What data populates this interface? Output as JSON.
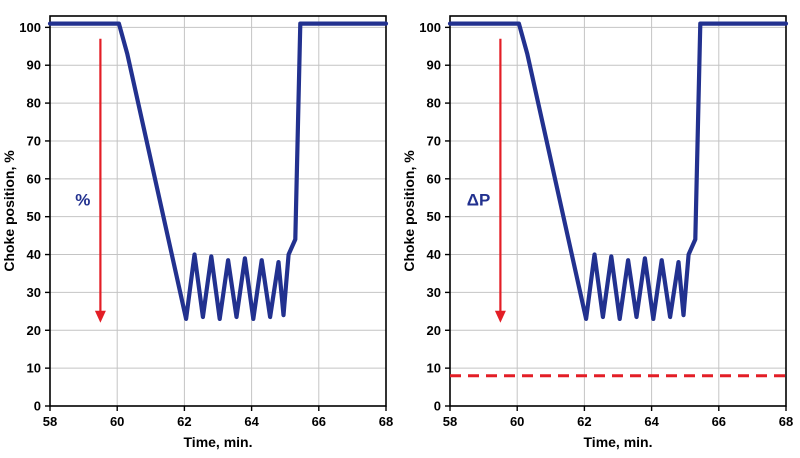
{
  "page": {
    "background": "#ffffff"
  },
  "chart_data": [
    {
      "type": "line",
      "title": "",
      "xlabel": "Time, min.",
      "ylabel": "Choke position, %",
      "xlim": [
        58,
        68
      ],
      "ylim": [
        0,
        103
      ],
      "xticks": [
        58,
        60,
        62,
        64,
        66,
        68
      ],
      "yticks": [
        0,
        10,
        20,
        30,
        40,
        50,
        60,
        70,
        80,
        90,
        100
      ],
      "grid": true,
      "legend": "none",
      "annotation": {
        "label": "%",
        "x": 59.2,
        "y": 53,
        "color": "#22318f"
      },
      "arrow": {
        "x": 59.5,
        "y_from": 97,
        "y_to": 22,
        "color": "#e31e26",
        "direction": "down"
      },
      "threshold": null,
      "series": [
        {
          "name": "Choke position",
          "color": "#22318f",
          "points": [
            [
              58,
              101
            ],
            [
              60.05,
              101
            ],
            [
              60.3,
              93
            ],
            [
              62.05,
              23
            ],
            [
              62.3,
              40
            ],
            [
              62.55,
              23.5
            ],
            [
              62.8,
              39.5
            ],
            [
              63.05,
              23
            ],
            [
              63.3,
              38.5
            ],
            [
              63.55,
              23.5
            ],
            [
              63.8,
              39
            ],
            [
              64.05,
              23
            ],
            [
              64.3,
              38.5
            ],
            [
              64.55,
              23.5
            ],
            [
              64.8,
              38
            ],
            [
              64.95,
              24
            ],
            [
              65.1,
              40
            ],
            [
              65.3,
              44
            ],
            [
              65.45,
              101
            ],
            [
              68,
              101
            ]
          ]
        }
      ]
    },
    {
      "type": "line",
      "title": "",
      "xlabel": "Time, min.",
      "ylabel": "Choke position, %",
      "xlim": [
        58,
        68
      ],
      "ylim": [
        0,
        103
      ],
      "xticks": [
        58,
        60,
        62,
        64,
        66,
        68
      ],
      "yticks": [
        0,
        10,
        20,
        30,
        40,
        50,
        60,
        70,
        80,
        90,
        100
      ],
      "grid": true,
      "legend": "none",
      "annotation": {
        "label": "ΔP",
        "x": 59.2,
        "y": 53,
        "color": "#22318f"
      },
      "arrow": {
        "x": 59.5,
        "y_from": 97,
        "y_to": 22,
        "color": "#e31e26",
        "direction": "down"
      },
      "threshold": {
        "y": 8,
        "color": "#e31e26",
        "style": "dashed"
      },
      "series": [
        {
          "name": "Choke position",
          "color": "#22318f",
          "points": [
            [
              58,
              101
            ],
            [
              60.05,
              101
            ],
            [
              60.3,
              93
            ],
            [
              62.05,
              23
            ],
            [
              62.3,
              40
            ],
            [
              62.55,
              23.5
            ],
            [
              62.8,
              39.5
            ],
            [
              63.05,
              23
            ],
            [
              63.3,
              38.5
            ],
            [
              63.55,
              23.5
            ],
            [
              63.8,
              39
            ],
            [
              64.05,
              23
            ],
            [
              64.3,
              38.5
            ],
            [
              64.55,
              23.5
            ],
            [
              64.8,
              38
            ],
            [
              64.95,
              24
            ],
            [
              65.1,
              40
            ],
            [
              65.3,
              44
            ],
            [
              65.45,
              101
            ],
            [
              68,
              101
            ]
          ]
        }
      ]
    }
  ]
}
